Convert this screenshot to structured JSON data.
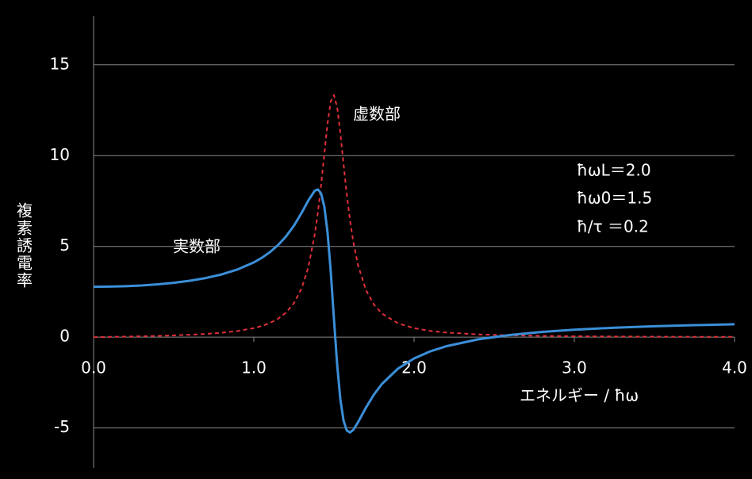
{
  "chart_data": {
    "type": "line",
    "y_label": "複素誘電率",
    "x_label": "エネルギー / ħω",
    "annotations": [
      "虚数部",
      "実数部",
      "ħωL＝2.0",
      "ħω0＝1.5",
      "ħ/τ ＝0.2"
    ],
    "x": [
      0,
      0.1,
      0.2,
      0.3,
      0.4,
      0.5,
      0.6,
      0.7,
      0.8,
      0.9,
      1.0,
      1.05,
      1.1,
      1.15,
      1.2,
      1.25,
      1.3,
      1.34,
      1.38,
      1.4,
      1.42,
      1.44,
      1.46,
      1.48,
      1.5,
      1.52,
      1.54,
      1.56,
      1.58,
      1.6,
      1.62,
      1.65,
      1.7,
      1.75,
      1.8,
      1.9,
      2.0,
      2.1,
      2.2,
      2.4,
      2.6,
      2.8,
      3.0,
      3.25,
      3.5,
      3.75,
      4.0
    ],
    "series": [
      {
        "name": "実数部",
        "color": "#3b8fd8",
        "dash": false,
        "values": [
          2.778,
          2.786,
          2.809,
          2.85,
          2.911,
          2.995,
          3.108,
          3.258,
          3.46,
          3.735,
          4.12,
          4.373,
          4.681,
          5.063,
          5.54,
          6.138,
          6.876,
          7.531,
          8.067,
          8.138,
          7.91,
          7.186,
          5.77,
          3.615,
          1.0,
          -1.515,
          -3.436,
          -4.604,
          -5.138,
          -5.247,
          -5.109,
          -4.69,
          -3.874,
          -3.153,
          -2.569,
          -1.728,
          -1.172,
          -0.784,
          -0.501,
          -0.119,
          0.125,
          0.292,
          0.412,
          0.522,
          0.602,
          0.663,
          0.71
        ]
      },
      {
        "name": "虚数部",
        "color": "#e0303a",
        "dash": true,
        "values": [
          0,
          0.016,
          0.033,
          0.051,
          0.073,
          0.1,
          0.134,
          0.18,
          0.244,
          0.342,
          0.499,
          0.617,
          0.779,
          1.007,
          1.345,
          1.868,
          2.728,
          3.852,
          5.644,
          6.892,
          8.401,
          10.1,
          11.765,
          12.987,
          13.333,
          12.657,
          11.236,
          9.523,
          7.872,
          6.448,
          5.286,
          3.974,
          2.589,
          1.789,
          1.298,
          0.762,
          0.497,
          0.347,
          0.255,
          0.153,
          0.101,
          0.071,
          0.052,
          0.037,
          0.028,
          0.021,
          0.017
        ]
      }
    ],
    "xlim": [
      0,
      4
    ],
    "ylim": [
      -7.2,
      17.7
    ],
    "xticks": [
      {
        "value": 0,
        "label": "0.0"
      },
      {
        "value": 1,
        "label": "1.0"
      },
      {
        "value": 2,
        "label": "2.0"
      },
      {
        "value": 3,
        "label": "3.0"
      },
      {
        "value": 4,
        "label": "4.0"
      }
    ],
    "yticks": [
      -5,
      0,
      5,
      10,
      15
    ],
    "grid": true
  }
}
